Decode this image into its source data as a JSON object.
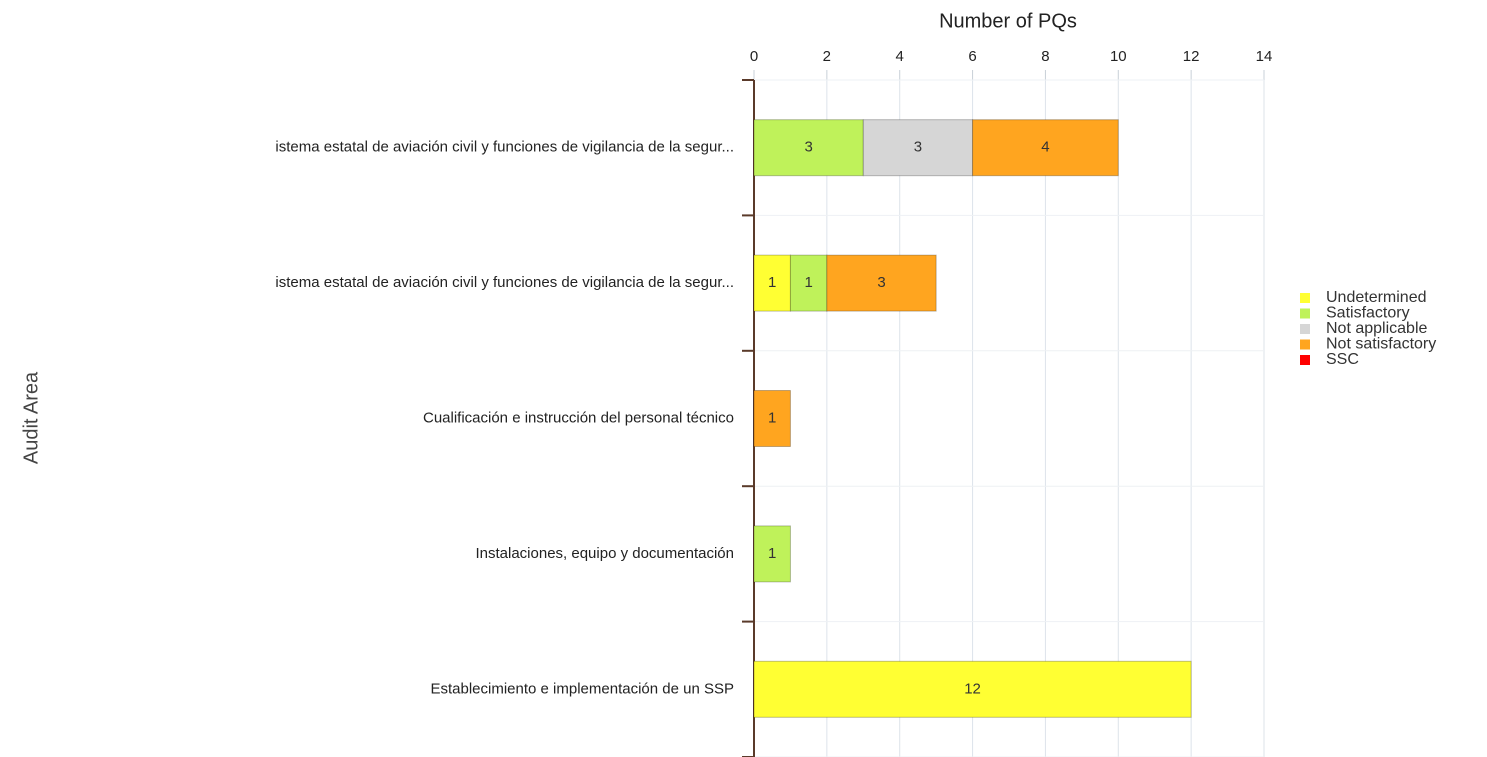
{
  "chart_data": {
    "type": "stacked-bar-horizontal",
    "xlabel": "Number of PQs",
    "ylabel": "Audit Area",
    "categories": [
      "istema estatal de aviación civil y funciones de vigilancia de la segur...",
      "istema estatal de aviación civil y funciones de vigilancia de la segur...",
      "Cualificación e instrucción del personal técnico",
      "Instalaciones, equipo y documentación",
      "Establecimiento e implementación de un SSP"
    ],
    "series": [
      {
        "name": "Undetermined",
        "color": "#ffff33",
        "values": [
          0,
          1,
          0,
          0,
          12
        ]
      },
      {
        "name": "Satisfactory",
        "color": "#bff25a",
        "values": [
          3,
          1,
          0,
          1,
          0
        ]
      },
      {
        "name": "Not applicable",
        "color": "#d6d6d6",
        "values": [
          3,
          0,
          0,
          0,
          0
        ]
      },
      {
        "name": "Not satisfactory",
        "color": "#ffa51f",
        "values": [
          4,
          3,
          1,
          0,
          0
        ]
      },
      {
        "name": "SSC",
        "color": "#ff0000",
        "values": [
          0,
          0,
          0,
          0,
          0
        ]
      }
    ],
    "xlim": [
      0,
      14
    ],
    "xticks": [
      0,
      2,
      4,
      6,
      8,
      10,
      12,
      14
    ],
    "grid": true,
    "legend": "right"
  }
}
